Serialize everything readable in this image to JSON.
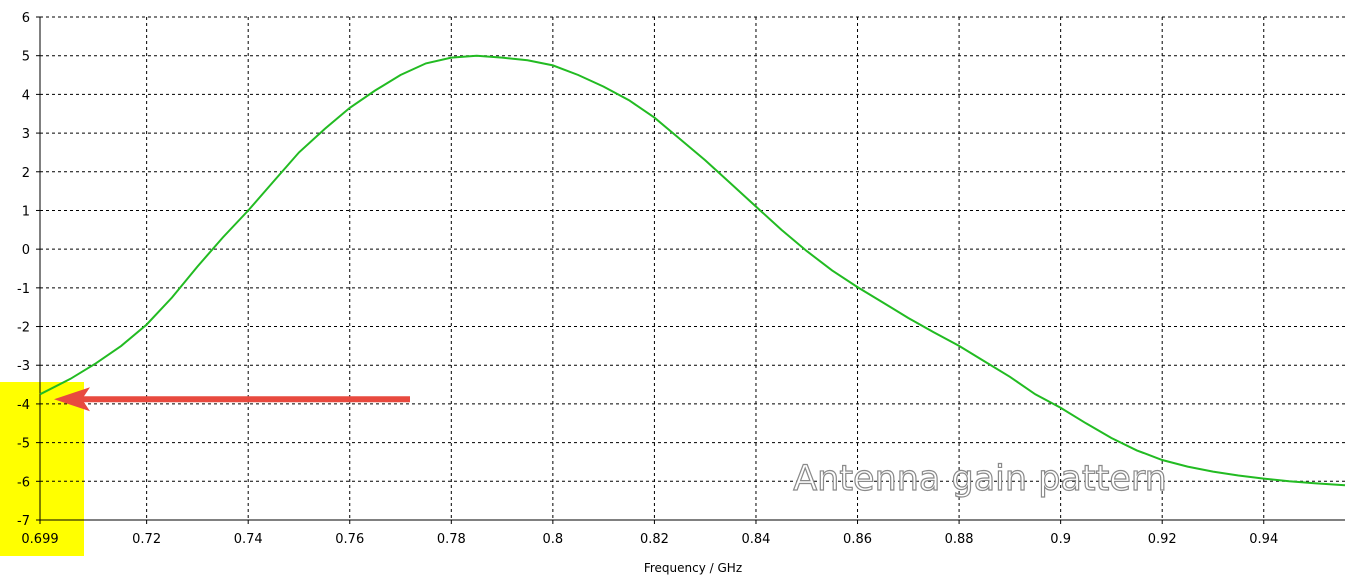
{
  "chart_data": {
    "type": "line",
    "title": "",
    "xlabel": "Frequency / GHz",
    "ylabel": "",
    "xlim": [
      0.699,
      0.956
    ],
    "ylim": [
      -7,
      6
    ],
    "grid": true,
    "x_ticks": [
      "0.699",
      "0.72",
      "0.74",
      "0.76",
      "0.78",
      "0.8",
      "0.82",
      "0.84",
      "0.86",
      "0.88",
      "0.9",
      "0.92",
      "0.94"
    ],
    "y_ticks": [
      "6",
      "5",
      "4",
      "3",
      "2",
      "1",
      "0",
      "-1",
      "-2",
      "-3",
      "-4",
      "-5",
      "-6",
      "-7"
    ],
    "series": [
      {
        "name": "",
        "color": "#22bb22",
        "x": [
          0.699,
          0.705,
          0.71,
          0.715,
          0.72,
          0.725,
          0.73,
          0.735,
          0.74,
          0.745,
          0.75,
          0.755,
          0.76,
          0.765,
          0.77,
          0.775,
          0.78,
          0.785,
          0.79,
          0.795,
          0.8,
          0.805,
          0.81,
          0.815,
          0.82,
          0.825,
          0.83,
          0.835,
          0.84,
          0.845,
          0.85,
          0.855,
          0.86,
          0.865,
          0.87,
          0.875,
          0.88,
          0.885,
          0.89,
          0.895,
          0.9,
          0.905,
          0.91,
          0.915,
          0.92,
          0.925,
          0.93,
          0.935,
          0.94,
          0.945,
          0.95,
          0.956
        ],
        "y": [
          -3.75,
          -3.35,
          -2.95,
          -2.5,
          -1.95,
          -1.25,
          -0.45,
          0.3,
          1.0,
          1.75,
          2.5,
          3.1,
          3.65,
          4.1,
          4.5,
          4.8,
          4.95,
          5.0,
          4.95,
          4.88,
          4.75,
          4.5,
          4.2,
          3.85,
          3.4,
          2.85,
          2.3,
          1.7,
          1.1,
          0.5,
          -0.05,
          -0.55,
          -0.98,
          -1.38,
          -1.78,
          -2.15,
          -2.5,
          -2.9,
          -3.3,
          -3.75,
          -4.1,
          -4.5,
          -4.88,
          -5.2,
          -5.45,
          -5.62,
          -5.75,
          -5.85,
          -5.93,
          -6.0,
          -6.05,
          -6.1
        ]
      }
    ],
    "annotations": {
      "overlay_text": "Antenna gain pattern",
      "highlight_color": "#ffff00",
      "arrow_color": "#e84a3f",
      "arrow_target": {
        "x": 0.699,
        "y": -3.75
      }
    }
  }
}
